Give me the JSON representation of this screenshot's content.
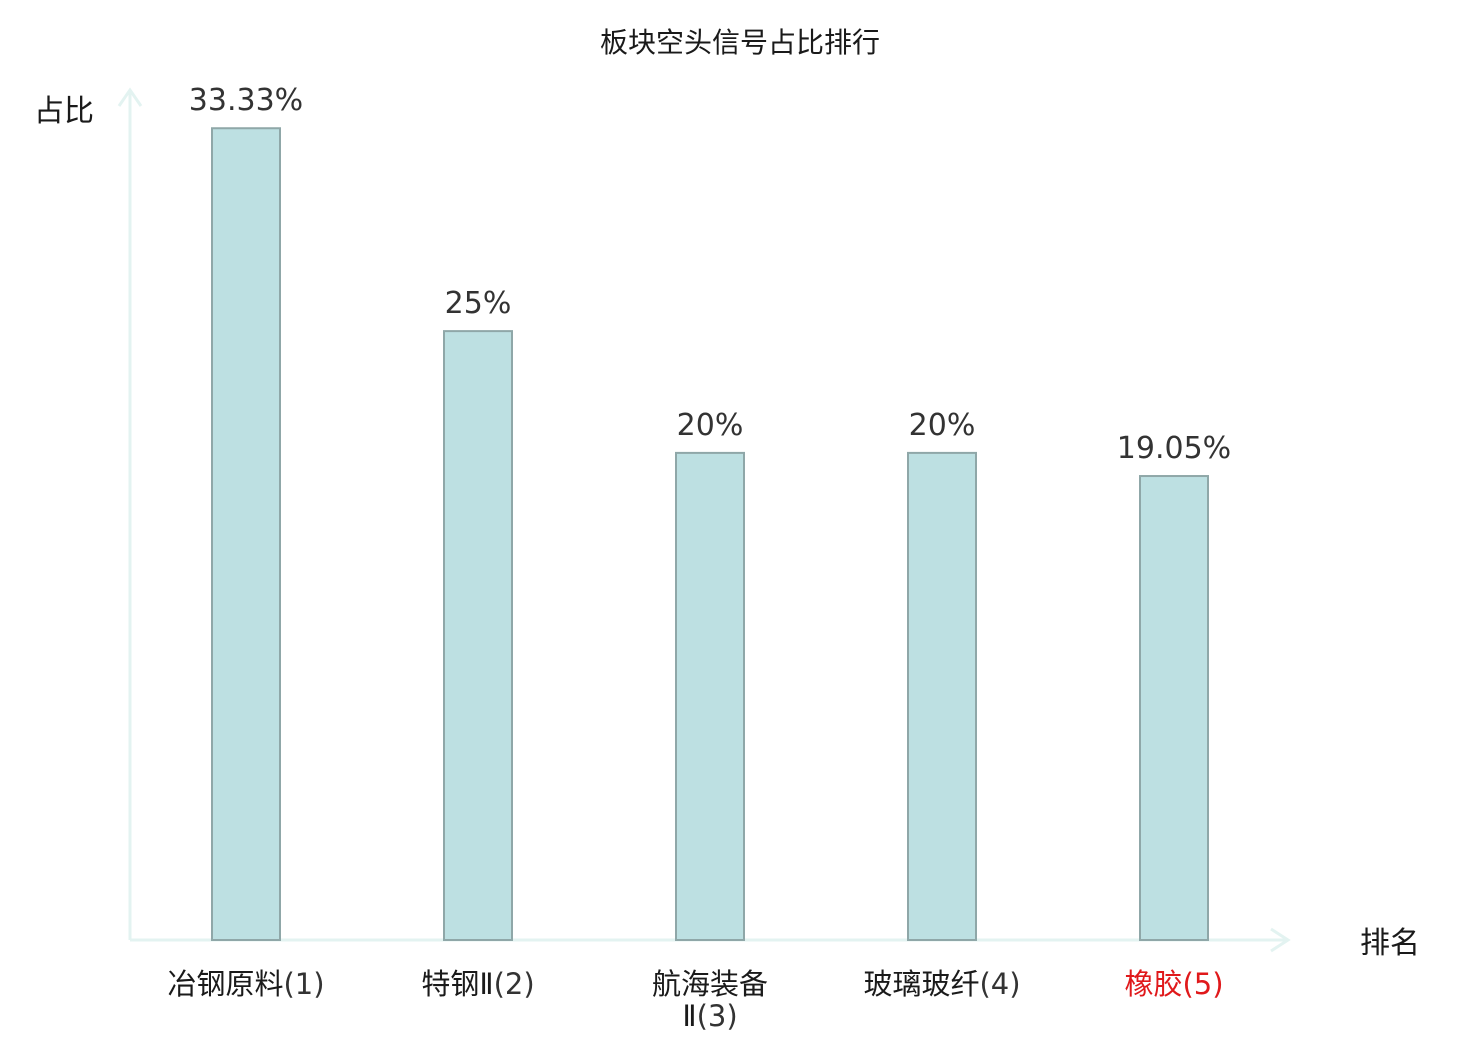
{
  "chart_data": {
    "type": "bar",
    "title": "板块空头信号占比排行",
    "xlabel": "排名",
    "ylabel": "占比",
    "ylim": [
      0,
      34.9
    ],
    "grid": false,
    "categories": [
      {
        "name": "冶钢原料",
        "rank": "(1)",
        "highlight": false
      },
      {
        "name": "特钢Ⅱ",
        "rank": "(2)",
        "highlight": false
      },
      {
        "name": "航海装备",
        "name2": "Ⅱ",
        "rank": "(3)",
        "highlight": false
      },
      {
        "name": "玻璃玻纤",
        "rank": "(4)",
        "highlight": false
      },
      {
        "name": "橡胶",
        "rank": "(5)",
        "highlight": true
      }
    ],
    "values": [
      33.33,
      25,
      20,
      20,
      19.05
    ],
    "value_labels": [
      "33.33%",
      "25%",
      "20%",
      "20%",
      "19.05%"
    ],
    "colors": {
      "bar_fill": "#bde0e2",
      "bar_stroke": "#8fa7a8",
      "axis": "#e3f3f1",
      "highlight_label": "#e0191b"
    }
  }
}
